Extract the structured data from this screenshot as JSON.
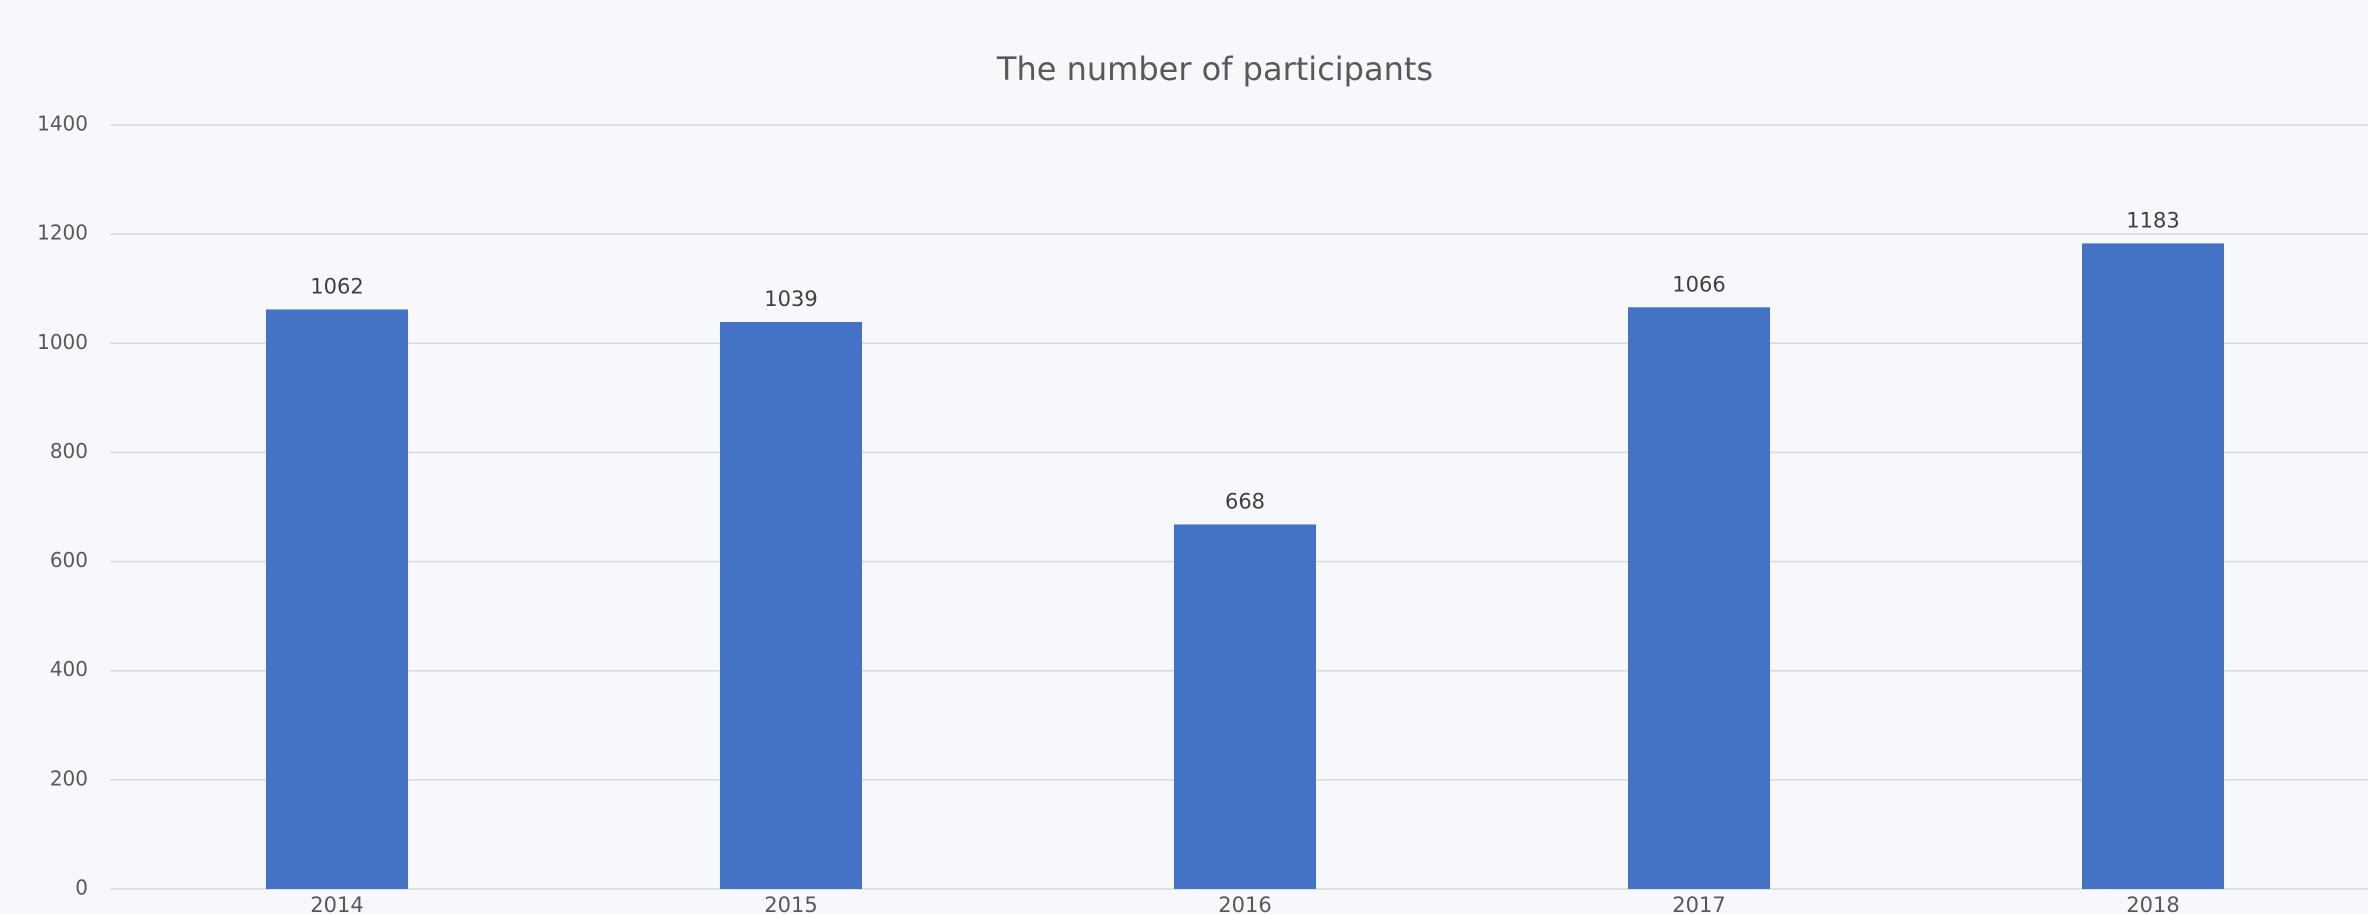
{
  "chart_data": {
    "type": "bar",
    "title": "The number of participants",
    "categories": [
      "2014",
      "2015",
      "2016",
      "2017",
      "2018"
    ],
    "values": [
      1062,
      1039,
      668,
      1066,
      1183
    ],
    "color": "#4472c4",
    "ylim": [
      0,
      1400
    ],
    "yticks": [
      0,
      200,
      400,
      600,
      800,
      1000,
      1200,
      1400
    ],
    "grid": true
  }
}
